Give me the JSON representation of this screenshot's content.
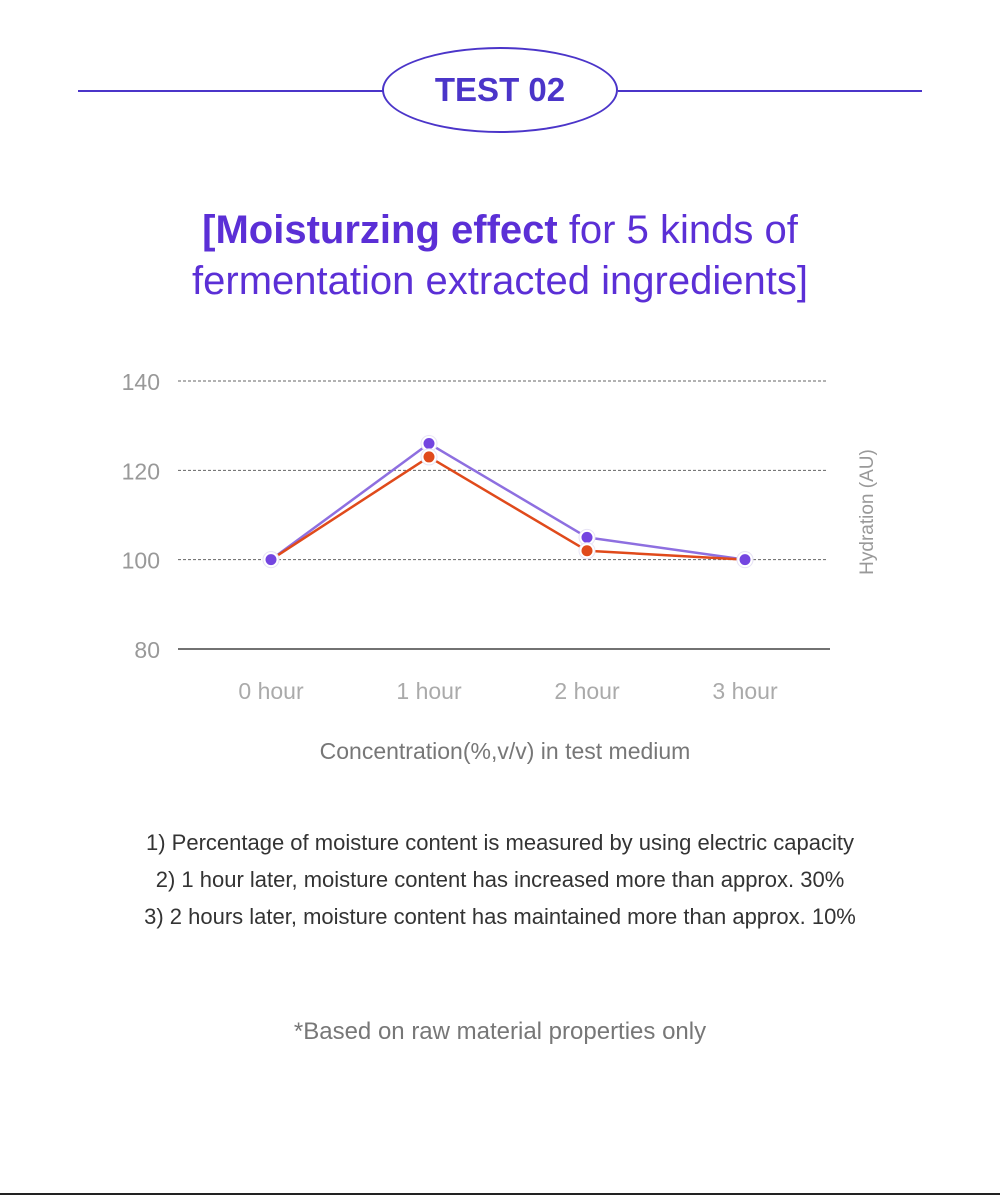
{
  "badge": {
    "label": "TEST 02"
  },
  "title": {
    "line1_bold": "[Moisturzing effect",
    "line1_rest": " for 5 kinds of",
    "line2": "fermentation extracted ingredients]"
  },
  "chart_data": {
    "type": "line",
    "categories": [
      "0 hour",
      "1 hour",
      "2 hour",
      "3 hour"
    ],
    "series": [
      {
        "color": "#8e6fe0",
        "values": [
          100,
          126,
          105,
          100
        ]
      },
      {
        "color": "#e04a1b",
        "values": [
          100,
          123,
          102,
          100
        ]
      }
    ],
    "xlabel": "Concentration(%,v/v) in test medium",
    "ylabel": "Hydration (AU)",
    "ylim": [
      80,
      140
    ],
    "yticks": [
      80,
      100,
      120,
      140
    ],
    "grid": true,
    "marker_color": "#7445e0"
  },
  "notes": [
    "1) Percentage of moisture content is measured by using electric capacity",
    "2) 1 hour later, moisture content has increased more than approx. 30%",
    "3) 2 hours later, moisture content has maintained more than approx. 10%"
  ],
  "footnote": "*Based on raw material properties only"
}
